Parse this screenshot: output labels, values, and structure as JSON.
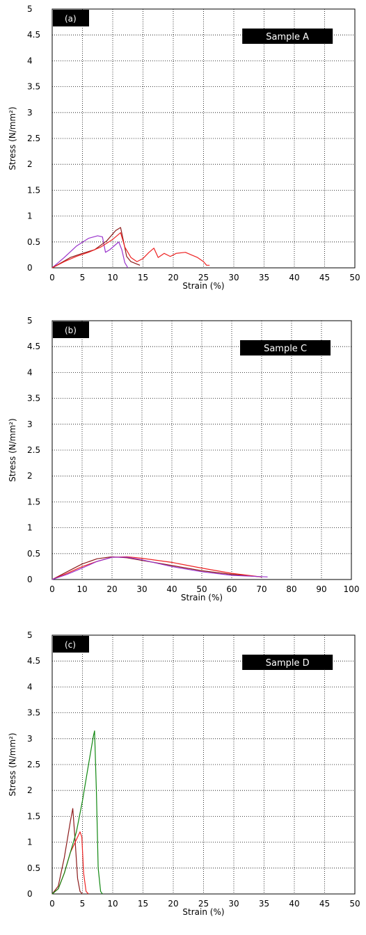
{
  "chart_data": [
    {
      "type": "line",
      "panel_label": "(a)",
      "sample_label": "Sample A",
      "xlabel": "Strain (%)",
      "ylabel": "Stress (N/mm²)",
      "xlim": [
        0,
        50
      ],
      "ylim": [
        0,
        5
      ],
      "xticks": [
        0,
        5,
        10,
        15,
        20,
        25,
        30,
        35,
        40,
        45,
        50
      ],
      "yticks": [
        0,
        0.5,
        1,
        1.5,
        2,
        2.5,
        3,
        3.5,
        4,
        4.5,
        5
      ],
      "grid": true,
      "series": [
        {
          "color": "#9933cc",
          "points": [
            [
              0,
              0
            ],
            [
              2,
              0.2
            ],
            [
              4,
              0.42
            ],
            [
              6,
              0.57
            ],
            [
              7.5,
              0.62
            ],
            [
              8.3,
              0.6
            ],
            [
              8.8,
              0.3
            ],
            [
              9.5,
              0.35
            ],
            [
              10.5,
              0.45
            ],
            [
              11,
              0.5
            ],
            [
              11.5,
              0.35
            ],
            [
              12,
              0.1
            ],
            [
              12.5,
              0.0
            ]
          ]
        },
        {
          "color": "#8b1a1a",
          "points": [
            [
              0,
              0
            ],
            [
              1.5,
              0.1
            ],
            [
              3,
              0.2
            ],
            [
              5,
              0.28
            ],
            [
              7,
              0.35
            ],
            [
              9,
              0.52
            ],
            [
              10.5,
              0.72
            ],
            [
              11.3,
              0.78
            ],
            [
              11.8,
              0.5
            ],
            [
              12.3,
              0.22
            ],
            [
              13,
              0.12
            ],
            [
              14.5,
              0.05
            ]
          ]
        },
        {
          "color": "#ee2222",
          "points": [
            [
              0,
              0
            ],
            [
              2,
              0.12
            ],
            [
              4,
              0.22
            ],
            [
              6,
              0.3
            ],
            [
              8,
              0.4
            ],
            [
              10,
              0.55
            ],
            [
              11.3,
              0.68
            ],
            [
              12,
              0.4
            ],
            [
              13,
              0.2
            ],
            [
              14,
              0.12
            ],
            [
              15,
              0.18
            ],
            [
              16,
              0.3
            ],
            [
              16.8,
              0.38
            ],
            [
              17.5,
              0.2
            ],
            [
              18.5,
              0.28
            ],
            [
              19.5,
              0.22
            ],
            [
              20.5,
              0.28
            ],
            [
              22,
              0.3
            ],
            [
              23,
              0.25
            ],
            [
              24,
              0.2
            ],
            [
              25,
              0.12
            ],
            [
              25.5,
              0.05
            ],
            [
              26,
              0.05
            ]
          ]
        }
      ]
    },
    {
      "type": "line",
      "panel_label": "(b)",
      "sample_label": "Sample C",
      "xlabel": "Strain (%)",
      "ylabel": "Stress (N/mm²)",
      "xlim": [
        0,
        100
      ],
      "ylim": [
        0,
        5
      ],
      "xticks": [
        0,
        10,
        20,
        30,
        40,
        50,
        60,
        70,
        80,
        90,
        100
      ],
      "yticks": [
        0,
        0.5,
        1,
        1.5,
        2,
        2.5,
        3,
        3.5,
        4,
        4.5,
        5
      ],
      "grid": true,
      "series": [
        {
          "color": "#8b1a1a",
          "points": [
            [
              0,
              0
            ],
            [
              5,
              0.15
            ],
            [
              10,
              0.3
            ],
            [
              15,
              0.4
            ],
            [
              20,
              0.44
            ],
            [
              25,
              0.42
            ],
            [
              30,
              0.37
            ],
            [
              40,
              0.27
            ],
            [
              50,
              0.17
            ],
            [
              60,
              0.1
            ],
            [
              70,
              0.05
            ]
          ]
        },
        {
          "color": "#ee2222",
          "points": [
            [
              0,
              0
            ],
            [
              5,
              0.12
            ],
            [
              10,
              0.25
            ],
            [
              15,
              0.35
            ],
            [
              20,
              0.43
            ],
            [
              25,
              0.44
            ],
            [
              30,
              0.41
            ],
            [
              40,
              0.33
            ],
            [
              50,
              0.22
            ],
            [
              60,
              0.12
            ],
            [
              70,
              0.05
            ]
          ]
        },
        {
          "color": "#9933cc",
          "points": [
            [
              0,
              0
            ],
            [
              5,
              0.1
            ],
            [
              10,
              0.22
            ],
            [
              15,
              0.35
            ],
            [
              20,
              0.43
            ],
            [
              25,
              0.43
            ],
            [
              30,
              0.38
            ],
            [
              40,
              0.25
            ],
            [
              50,
              0.15
            ],
            [
              60,
              0.08
            ],
            [
              72,
              0.05
            ]
          ]
        }
      ]
    },
    {
      "type": "line",
      "panel_label": "(c)",
      "sample_label": "Sample D",
      "xlabel": "Strain (%)",
      "ylabel": "Stress (N/mm²)",
      "xlim": [
        0,
        50
      ],
      "ylim": [
        0,
        5
      ],
      "xticks": [
        0,
        5,
        10,
        15,
        20,
        25,
        30,
        35,
        40,
        45,
        50
      ],
      "yticks": [
        0,
        0.5,
        1,
        1.5,
        2,
        2.5,
        3,
        3.5,
        4,
        4.5,
        5
      ],
      "grid": true,
      "series": [
        {
          "color": "#8b1a1a",
          "points": [
            [
              0,
              0
            ],
            [
              1,
              0.15
            ],
            [
              2,
              0.7
            ],
            [
              3,
              1.4
            ],
            [
              3.4,
              1.65
            ],
            [
              3.8,
              1.0
            ],
            [
              4.2,
              0.3
            ],
            [
              4.6,
              0.05
            ],
            [
              5,
              0
            ]
          ]
        },
        {
          "color": "#ee2222",
          "points": [
            [
              0,
              0
            ],
            [
              1,
              0.1
            ],
            [
              2,
              0.4
            ],
            [
              3,
              0.8
            ],
            [
              4,
              1.05
            ],
            [
              4.6,
              1.2
            ],
            [
              4.9,
              1.1
            ],
            [
              5.2,
              0.4
            ],
            [
              5.6,
              0.05
            ],
            [
              6,
              0
            ]
          ]
        },
        {
          "color": "#118811",
          "points": [
            [
              0,
              0
            ],
            [
              1,
              0.1
            ],
            [
              2,
              0.4
            ],
            [
              3,
              0.8
            ],
            [
              4,
              1.2
            ],
            [
              5,
              1.8
            ],
            [
              6,
              2.5
            ],
            [
              6.8,
              3.05
            ],
            [
              7,
              3.15
            ],
            [
              7.3,
              2.0
            ],
            [
              7.6,
              0.5
            ],
            [
              8,
              0.05
            ],
            [
              8.3,
              0
            ]
          ]
        }
      ]
    }
  ]
}
